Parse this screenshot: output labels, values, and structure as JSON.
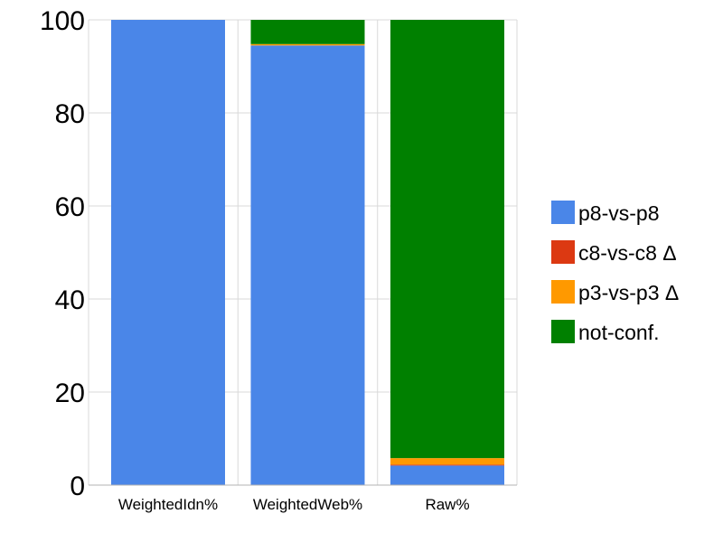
{
  "chart_data": {
    "type": "bar",
    "stacked": true,
    "percent_stacked": true,
    "categories": [
      "WeightedIdn%",
      "WeightedWeb%",
      "Raw%"
    ],
    "series": [
      {
        "name": "p8-vs-p8",
        "color": "#4a86e8",
        "values": [
          100,
          94.5,
          4.2
        ]
      },
      {
        "name": "c8-vs-c8 Δ",
        "color": "#dc3912",
        "values": [
          0,
          0,
          0.2
        ]
      },
      {
        "name": "p3-vs-p3 Δ",
        "color": "#ff9900",
        "values": [
          0,
          0.3,
          1.4
        ]
      },
      {
        "name": "not-conf.",
        "color": "#008000",
        "values": [
          0,
          5.2,
          94.2
        ]
      }
    ],
    "ylim": [
      0,
      100
    ],
    "yticks": [
      0,
      20,
      40,
      60,
      80,
      100
    ],
    "title": "",
    "xlabel": "",
    "ylabel": "",
    "grid": true,
    "legend": "right"
  }
}
